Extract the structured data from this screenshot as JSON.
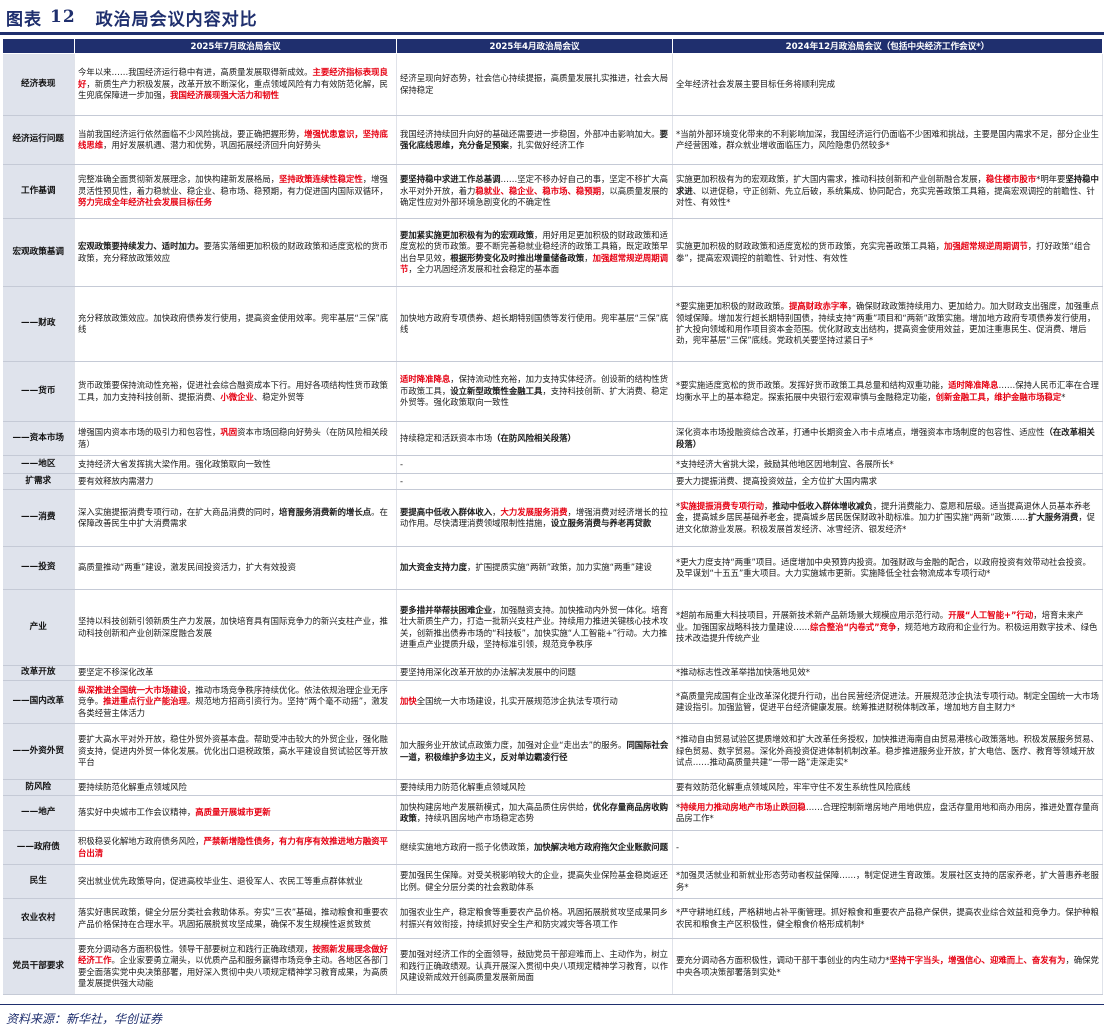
{
  "header": {
    "label": "图表",
    "number": "12",
    "title": "政治局会议内容对比"
  },
  "table": {
    "columns": [
      "",
      "2025年7月政治局会议",
      "2025年4月政治局会议",
      "2024年12月政治局会议（包括中央经济工作会议*）"
    ],
    "rows": [
      {
        "label": "经济表现",
        "h": 62,
        "cells": [
          [
            [
              "今年以来……我国经济运行稳中有进，高质量发展取得新成效。",
              ""
            ],
            [
              "主要经济指标表现良好",
              "r"
            ],
            [
              "，新质生产力积极发展，改革开放不断深化，重点领域风险有力有效防范化解，民生兜底保障进一步加强，",
              ""
            ],
            [
              "我国经济展现强大活力和韧性",
              "r"
            ]
          ],
          [
            [
              "经济呈现向好态势，社会信心持续提振，高质量发展扎实推进，社会大局保持稳定",
              ""
            ]
          ],
          [
            [
              "全年经济社会发展主要目标任务将顺利完成",
              ""
            ]
          ]
        ]
      },
      {
        "label": "经济运行问题",
        "h": 49,
        "cells": [
          [
            [
              "当前我国经济运行依然面临不少风险挑战，要正确把握形势，",
              ""
            ],
            [
              "增强忧患意识，坚持底线思维",
              "r"
            ],
            [
              "，用好发展机遇、潜力和优势，巩固拓展经济回升向好势头",
              ""
            ]
          ],
          [
            [
              "我国经济持续回升向好的基础还需要进一步稳固，外部冲击影响加大。",
              ""
            ],
            [
              "要强化底线思维，充分备足预案",
              "b"
            ],
            [
              "，扎实做好经济工作",
              ""
            ]
          ],
          [
            [
              "*当前外部环境变化带来的不利影响加深，我国经济运行仍面临不少困难和挑战，主要是国内需求不足，部分企业生产经营困难，群众就业增收面临压力，风险隐患仍然较多*",
              ""
            ]
          ]
        ]
      },
      {
        "label": "工作基调",
        "h": 54,
        "cells": [
          [
            [
              "完整准确全面贯彻新发展理念，加快构建新发展格局，",
              ""
            ],
            [
              "坚持政策连续性稳定性",
              "r"
            ],
            [
              "，增强灵活性预见性，着力稳就业、稳企业、稳市场、稳预期，有力促进国内国际双循环，",
              ""
            ],
            [
              "努力完成全年经济社会发展目标任务",
              "r"
            ]
          ],
          [
            [
              "要坚持稳中求进工作总基调",
              "b"
            ],
            [
              "……坚定不移办好自己的事，坚定不移扩大高水平对外开放，着力",
              ""
            ],
            [
              "稳就业、稳企业、稳市场、稳预期",
              "r"
            ],
            [
              "，以高质量发展的确定性应对外部环境急剧变化的不确定性",
              ""
            ]
          ],
          [
            [
              "实施更加积极有为的宏观政策，扩大国内需求，推动科技创新和产业创新融合发展，",
              ""
            ],
            [
              "稳住楼市股市",
              "r"
            ],
            [
              "*明年要",
              ""
            ],
            [
              "坚持稳中求进",
              "b"
            ],
            [
              "、以进促稳，守正创新、先立后破，系统集成、协同配合，充实完善政策工具箱，提高宏观调控的前瞻性、针对性、有效性*",
              ""
            ]
          ]
        ]
      },
      {
        "label": "宏观政策基调",
        "h": 68,
        "cells": [
          [
            [
              "宏观政策要持续发力、适时加力。",
              "b"
            ],
            [
              "要落实落细更加积极的财政政策和适度宽松的货币政策，充分释放政策效应",
              ""
            ]
          ],
          [
            [
              "要加紧实施更加积极有为的宏观政策",
              "b"
            ],
            [
              "，用好用足更加积极的财政政策和适度宽松的货币政策。要不断完善稳就业稳经济的政策工具箱，既定政策早出台早见效，",
              ""
            ],
            [
              "根据形势变化及时推出增量储备政策",
              "b"
            ],
            [
              "，",
              ""
            ],
            [
              "加强超常规逆周期调节",
              "r"
            ],
            [
              "，全力巩固经济发展和社会稳定的基本面",
              ""
            ]
          ],
          [
            [
              "实施更加积极的财政政策和适度宽松的货币政策，充实完善政策工具箱，",
              ""
            ],
            [
              "加强超常规逆周期调节",
              "r"
            ],
            [
              "，打好政策“组合拳”，提高宏观调控的前瞻性、针对性、有效性",
              ""
            ]
          ]
        ]
      },
      {
        "label": "——财政",
        "h": 75,
        "cells": [
          [
            [
              "充分释放政策效应。加快政府债券发行使用，提高资金使用效率。兜牢基层“三保”底线",
              ""
            ]
          ],
          [
            [
              "加快地方政府专项债券、超长期特别国债等发行使用。兜牢基层“三保”底线",
              ""
            ]
          ],
          [
            [
              "*要实施更加积极的财政政策。",
              ""
            ],
            [
              "提高财政赤字率",
              "r"
            ],
            [
              "，确保财政政策持续用力、更加给力。加大财政支出强度，加强重点领域保障。增加发行超长期特别国债，持续支持“两重”项目和“两新”政策实施。增加地方政府专项债券发行使用，扩大投向领域和用作项目资本金范围。优化财政支出结构，提高资金使用效益，更加注重惠民生、促消费、增后劲，兜牢基层“三保”底线。党政机关要坚持过紧日子*",
              ""
            ]
          ]
        ]
      },
      {
        "label": "——货币",
        "h": 60,
        "cells": [
          [
            [
              "货币政策要保持流动性充裕，促进社会综合融资成本下行。用好各项结构性货币政策工具，加力支持科技创新、提振消费、",
              ""
            ],
            [
              "小微企业",
              "r"
            ],
            [
              "、稳定外贸等",
              ""
            ]
          ],
          [
            [
              "适时降准降息",
              "r"
            ],
            [
              "，保持流动性充裕，加力支持实体经济。创设新的结构性货币政策工具，",
              ""
            ],
            [
              "设立新型政策性金融工具",
              "b"
            ],
            [
              "，支持科技创新、扩大消费、稳定外贸等。强化政策取向一致性",
              ""
            ]
          ],
          [
            [
              "*要实施适度宽松的货币政策。发挥好货币政策工具总量和结构双重功能，",
              ""
            ],
            [
              "适时降准降息",
              "r"
            ],
            [
              "……保持人民币汇率在合理均衡水平上的基本稳定。探索拓展中央银行宏观审慎与金融稳定功能，",
              ""
            ],
            [
              "创新金融工具，维护金融市场稳定",
              "r"
            ],
            [
              "*",
              ""
            ]
          ]
        ]
      },
      {
        "label": "——资本市场",
        "h": 34,
        "cells": [
          [
            [
              "增强国内资本市场的吸引力和包容性，",
              ""
            ],
            [
              "巩固",
              "r"
            ],
            [
              "资本市场回稳向好势头（在防风险相关段落）",
              ""
            ]
          ],
          [
            [
              "持续稳定和活跃资本市场",
              ""
            ],
            [
              "（在防风险相关段落）",
              "b"
            ]
          ],
          [
            [
              "深化资本市场投融资综合改革，打通中长期资金入市卡点堵点，增强资本市场制度的包容性、适应性",
              ""
            ],
            [
              "（在改革相关段落）",
              "b"
            ]
          ]
        ]
      },
      {
        "label": "——地区",
        "h": 18,
        "cells": [
          [
            [
              "支持经济大省发挥挑大梁作用。强化政策取向一致性",
              ""
            ]
          ],
          [
            [
              "-",
              ""
            ]
          ],
          [
            [
              "*支持经济大省挑大梁，鼓励其他地区因地制宜、各展所长*",
              ""
            ]
          ]
        ]
      },
      {
        "label": "扩需求",
        "h": 16,
        "cells": [
          [
            [
              "要有效释放内需潜力",
              ""
            ]
          ],
          [
            [
              "-",
              ""
            ]
          ],
          [
            [
              "要大力提振消费、提高投资效益，全方位扩大国内需求",
              ""
            ]
          ]
        ]
      },
      {
        "label": "——消费",
        "h": 57,
        "cells": [
          [
            [
              "深入实施提振消费专项行动，在扩大商品消费的同时，",
              ""
            ],
            [
              "培育服务消费新的增长点",
              "b"
            ],
            [
              "。在保障改善民生中扩大消费需求",
              ""
            ]
          ],
          [
            [
              "要提高中低收入群体收入",
              "b"
            ],
            [
              "，",
              ""
            ],
            [
              "大力发展服务消费",
              "r"
            ],
            [
              "，增强消费对经济增长的拉动作用。尽快清理消费领域限制性措施，",
              ""
            ],
            [
              "设立服务消费与养老再贷款",
              "b"
            ]
          ],
          [
            [
              "*",
              ""
            ],
            [
              "实施提振消费专项行动",
              "r"
            ],
            [
              "，",
              ""
            ],
            [
              "推动中低收入群体增收减负",
              "b"
            ],
            [
              "，提升消费能力、意愿和层级。适当提高退休人员基本养老金，提高城乡居民基础养老金，提高城乡居民医保财政补助标准。加力扩围实施“两新”政策……",
              ""
            ],
            [
              "扩大服务消费",
              "b"
            ],
            [
              "，促进文化旅游业发展。积极发展首发经济、冰雪经济、银发经济*",
              ""
            ]
          ]
        ]
      },
      {
        "label": "——投资",
        "h": 43,
        "cells": [
          [
            [
              "高质量推动“两重”建设，激发民间投资活力，扩大有效投资",
              ""
            ]
          ],
          [
            [
              "加大资金支持力度",
              "b"
            ],
            [
              "，扩围提质实施“两新”政策，加力实施“两重”建设",
              ""
            ]
          ],
          [
            [
              "*更大力度支持“两重”项目。适度增加中央预算内投资。加强财政与金融的配合，以政府投资有效带动社会投资。及早谋划“十五五”重大项目。大力实施城市更新。实施降低全社会物流成本专项行动*",
              ""
            ]
          ]
        ]
      },
      {
        "label": "产业",
        "h": 76,
        "cells": [
          [
            [
              "坚持以科技创新引领新质生产力发展，加快培育具有国际竞争力的新兴支柱产业，推动科技创新和产业创新深度融合发展",
              ""
            ]
          ],
          [
            [
              "要多措并举帮扶困难企业",
              "b"
            ],
            [
              "，加强融资支持。加快推动内外贸一体化。培育壮大新质生产力，打造一批新兴支柱产业。持续用力推进关键核心技术攻关，创新推出债券市场的“科技板”，加快实施“人工智能+”行动。大力推进重点产业提质升级，坚持标准引领，规范竞争秩序",
              ""
            ]
          ],
          [
            [
              "*超前布局重大科技项目，开展新技术新产品新场景大规模应用示范行动。",
              ""
            ],
            [
              "开展“人工智能+”行动",
              "r"
            ],
            [
              "，培育未来产业。加强国家战略科技力量建设……",
              ""
            ],
            [
              "综合整治“内卷式”竞争",
              "r"
            ],
            [
              "，规范地方政府和企业行为。积极运用数字技术、绿色技术改造提升传统产业",
              ""
            ]
          ]
        ]
      },
      {
        "label": "改革开放",
        "h": 15,
        "cells": [
          [
            [
              "要坚定不移深化改革",
              ""
            ]
          ],
          [
            [
              "要坚持用深化改革开放的办法解决发展中的问题",
              ""
            ]
          ],
          [
            [
              "*推动标志性改革举措加快落地见效*",
              ""
            ]
          ]
        ]
      },
      {
        "label": "——国内改革",
        "h": 43,
        "cells": [
          [
            [
              "纵深推进全国统一大市场建设",
              "r"
            ],
            [
              "，推动市场竞争秩序持续优化。依法依规治理企业无序竞争。",
              ""
            ],
            [
              "推进重点行业产能治理",
              "r"
            ],
            [
              "。规范地方招商引资行为。坚持“两个毫不动摇”，激发各类经营主体活力",
              ""
            ]
          ],
          [
            [
              "加快",
              "r"
            ],
            [
              "全国统一大市场建设，扎实开展规范涉企执法专项行动",
              ""
            ]
          ],
          [
            [
              "*高质量完成国有企业改革深化提升行动，出台民营经济促进法。开展规范涉企执法专项行动。制定全国统一大市场建设指引。加强监管，促进平台经济健康发展。统筹推进财税体制改革，增加地方自主财力*",
              ""
            ]
          ]
        ]
      },
      {
        "label": "——外资外贸",
        "h": 56,
        "cells": [
          [
            [
              "要扩大高水平对外开放，稳住外贸外资基本盘。帮助受冲击较大的外贸企业，强化融资支持，促进内外贸一体化发展。优化出口退税政策，高水平建设自贸试验区等开放平台",
              ""
            ]
          ],
          [
            [
              "加大服务业开放试点政策力度，加强对企业“走出去”的服务。",
              ""
            ],
            [
              "同国际社会一道，积极维护多边主义，反对单边霸凌行径",
              "b"
            ]
          ],
          [
            [
              "*推动自由贸易试验区提质增效和扩大改革任务授权，加快推进海南自由贸易港核心政策落地。积极发展服务贸易、绿色贸易、数字贸易。深化外商投资促进体制机制改革。稳步推进服务业开放，扩大电信、医疗、教育等领域开放试点……推动高质量共建“一带一路”走深走实*",
              ""
            ]
          ]
        ]
      },
      {
        "label": "防风险",
        "h": 16,
        "cells": [
          [
            [
              "要持续防范化解重点领域风险",
              ""
            ]
          ],
          [
            [
              "要持续用力防范化解重点领域风险",
              ""
            ]
          ],
          [
            [
              "要有效防范化解重点领域风险，牢牢守住不发生系统性风险底线",
              ""
            ]
          ]
        ]
      },
      {
        "label": "——地产",
        "h": 35,
        "cells": [
          [
            [
              "落实好中央城市工作会议精神，",
              ""
            ],
            [
              "高质量开展城市更新",
              "r"
            ]
          ],
          [
            [
              "加快构建房地产发展新模式，加大高品质住房供给，",
              ""
            ],
            [
              "优化存量商品房收购政策",
              "b"
            ],
            [
              "，持续巩固房地产市场稳定态势",
              ""
            ]
          ],
          [
            [
              "*",
              ""
            ],
            [
              "持续用力推动房地产市场止跌回稳",
              "r"
            ],
            [
              "……合理控制新增房地产用地供应，盘活存量用地和商办用房，推进处置存量商品房工作*",
              ""
            ]
          ]
        ]
      },
      {
        "label": "——政府债",
        "h": 34,
        "cells": [
          [
            [
              "积极稳妥化解地方政府债务风险，",
              ""
            ],
            [
              "严禁新增隐性债务，有力有序有效推进地方融资平台出清",
              "r"
            ]
          ],
          [
            [
              "继续实施地方政府一揽子化债政策，",
              ""
            ],
            [
              "加快解决地方政府拖欠企业账款问题",
              "b"
            ]
          ],
          [
            [
              "-",
              ""
            ]
          ]
        ]
      },
      {
        "label": "民生",
        "h": 34,
        "cells": [
          [
            [
              "突出就业优先政策导向，促进高校毕业生、退役军人、农民工等重点群体就业",
              ""
            ]
          ],
          [
            [
              "要加强民生保障。对受关税影响较大的企业，提高失业保险基金稳岗返还比例。健全分层分类的社会救助体系",
              ""
            ]
          ],
          [
            [
              "*加强灵活就业和新就业形态劳动者权益保障……，制定促进生育政策。发展社区支持的居家养老，扩大普惠养老服务*",
              ""
            ]
          ]
        ]
      },
      {
        "label": "农业农村",
        "h": 40,
        "cells": [
          [
            [
              "落实好惠民政策，健全分层分类社会救助体系。夯实“三农”基础，推动粮食和重要农产品价格保持在合理水平。巩固拓展脱贫攻坚成果，确保不发生规模性返贫致贫",
              ""
            ]
          ],
          [
            [
              "加强农业生产，稳定粮食等重要农产品价格。巩固拓展脱贫攻坚成果同乡村振兴有效衔接，持续抓好安全生产和防灾减灾等各项工作",
              ""
            ]
          ],
          [
            [
              "*严守耕地红线，严格耕地占补平衡管理。抓好粮食和重要农产品稳产保供，提高农业综合效益和竞争力。保护种粮农民和粮食主产区积极性，健全粮食价格形成机制*",
              ""
            ]
          ]
        ]
      },
      {
        "label": "党员干部要求",
        "h": 56,
        "cells": [
          [
            [
              "要充分调动各方面积极性。领导干部要树立和践行正确政绩观，",
              ""
            ],
            [
              "按照新发展理念做好经济工作",
              "r"
            ],
            [
              "。企业家要勇立潮头，以优质产品和服务赢得市场竞争主动。各地区各部门要全面落实党中央决策部署，用好深入贯彻中央八项规定精神学习教育成果，为高质量发展提供强大动能",
              ""
            ]
          ],
          [
            [
              "要加强对经济工作的全面领导，鼓励党员干部迎难而上、主动作为，树立和践行正确政绩观。认真开展深入贯彻中央八项规定精神学习教育，以作风建设新成效开创高质量发展新局面",
              ""
            ]
          ],
          [
            [
              "要充分调动各方面积极性，调动干部干事创业的内生动力",
              ""
            ],
            [
              "*",
              ""
            ],
            [
              "坚持干字当头，增强信心、迎难而上、奋发有为",
              "r"
            ],
            [
              "，确保党中央各项决策部署落到实处*",
              ""
            ]
          ]
        ]
      }
    ]
  },
  "footer": {
    "source": "资料来源：新华社，华创证券"
  }
}
